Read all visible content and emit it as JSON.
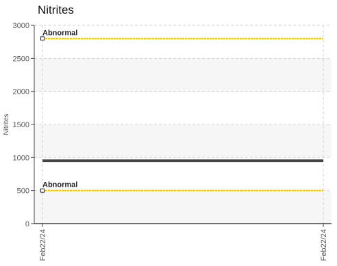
{
  "chart_data": {
    "type": "line",
    "title": "Nitrites",
    "ylabel": "Nitrites",
    "xlabel": "",
    "ylim": [
      0,
      3000
    ],
    "yticks": [
      0,
      500,
      1000,
      1500,
      2000,
      2500,
      3000
    ],
    "x": [
      "Feb22/24",
      "Feb22/24"
    ],
    "grid": true,
    "series": [
      {
        "values": [
          950,
          950
        ],
        "color": "#444444"
      }
    ],
    "thresholds": [
      {
        "label": "Abnormal",
        "value": 2800,
        "color": "#f2c400"
      },
      {
        "label": "Abnormal",
        "value": 500,
        "color": "#f2c400"
      }
    ]
  }
}
